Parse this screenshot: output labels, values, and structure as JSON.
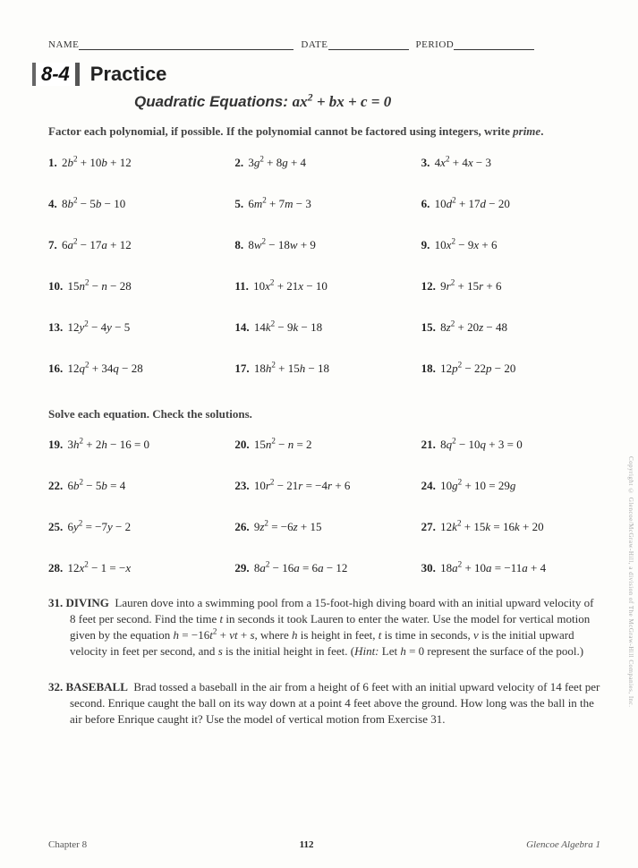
{
  "header": {
    "name_label": "NAME",
    "date_label": "DATE",
    "period_label": "PERIOD"
  },
  "section": {
    "number": "8-4",
    "title": "Practice",
    "subtitle_prefix": "Quadratic Equations: ",
    "subtitle_expr_html": "ax<sup>2</sup> + bx + c = 0"
  },
  "instructions": {
    "a_html": "<b>Factor each polynomial, if possible. If the polynomial cannot be factored using integers, write <i>prime</i>.</b>",
    "b_html": "<b>Solve each equation. Check the solutions.</b>"
  },
  "setA": [
    {
      "n": "1.",
      "html": "2<i>b</i><sup>2</sup> + 10<i>b</i> + 12"
    },
    {
      "n": "2.",
      "html": "3<i>g</i><sup>2</sup> + 8<i>g</i> + 4"
    },
    {
      "n": "3.",
      "html": "4<i>x</i><sup>2</sup> + 4<i>x</i> − 3"
    },
    {
      "n": "4.",
      "html": "8<i>b</i><sup>2</sup> − 5<i>b</i> − 10"
    },
    {
      "n": "5.",
      "html": "6<i>m</i><sup>2</sup> + 7<i>m</i> − 3"
    },
    {
      "n": "6.",
      "html": "10<i>d</i><sup>2</sup> + 17<i>d</i> − 20"
    },
    {
      "n": "7.",
      "html": "6<i>a</i><sup>2</sup> − 17<i>a</i> + 12"
    },
    {
      "n": "8.",
      "html": "8<i>w</i><sup>2</sup> − 18<i>w</i> + 9"
    },
    {
      "n": "9.",
      "html": "10<i>x</i><sup>2</sup> − 9<i>x</i> + 6"
    },
    {
      "n": "10.",
      "html": "15<i>n</i><sup>2</sup> − <i>n</i> − 28"
    },
    {
      "n": "11.",
      "html": "10<i>x</i><sup>2</sup> + 21<i>x</i> − 10"
    },
    {
      "n": "12.",
      "html": "9<i>r</i><sup>2</sup> + 15<i>r</i> + 6"
    },
    {
      "n": "13.",
      "html": "12<i>y</i><sup>2</sup> − 4<i>y</i> − 5"
    },
    {
      "n": "14.",
      "html": "14<i>k</i><sup>2</sup> − 9<i>k</i> − 18"
    },
    {
      "n": "15.",
      "html": "8<i>z</i><sup>2</sup> + 20<i>z</i> − 48"
    },
    {
      "n": "16.",
      "html": "12<i>q</i><sup>2</sup> + 34<i>q</i> − 28"
    },
    {
      "n": "17.",
      "html": "18<i>h</i><sup>2</sup> + 15<i>h</i> − 18"
    },
    {
      "n": "18.",
      "html": "12<i>p</i><sup>2</sup> − 22<i>p</i> − 20"
    }
  ],
  "setB": [
    {
      "n": "19.",
      "html": "3<i>h</i><sup>2</sup> + 2<i>h</i> − 16 = 0"
    },
    {
      "n": "20.",
      "html": "15<i>n</i><sup>2</sup> − <i>n</i> = 2"
    },
    {
      "n": "21.",
      "html": "8<i>q</i><sup>2</sup> − 10<i>q</i> + 3 = 0"
    },
    {
      "n": "22.",
      "html": "6<i>b</i><sup>2</sup> − 5<i>b</i> = 4"
    },
    {
      "n": "23.",
      "html": "10<i>r</i><sup>2</sup> − 21<i>r</i> = −4<i>r</i> + 6"
    },
    {
      "n": "24.",
      "html": "10<i>g</i><sup>2</sup> + 10 = 29<i>g</i>"
    },
    {
      "n": "25.",
      "html": "6<i>y</i><sup>2</sup> = −7<i>y</i> − 2"
    },
    {
      "n": "26.",
      "html": "9<i>z</i><sup>2</sup> = −6<i>z</i> + 15"
    },
    {
      "n": "27.",
      "html": "12<i>k</i><sup>2</sup> + 15<i>k</i> = 16<i>k</i> + 20"
    },
    {
      "n": "28.",
      "html": "12<i>x</i><sup>2</sup> − 1 = −<i>x</i>"
    },
    {
      "n": "29.",
      "html": "8<i>a</i><sup>2</sup> − 16<i>a</i> = 6<i>a</i> − 12"
    },
    {
      "n": "30.",
      "html": "18<i>a</i><sup>2</sup> + 10<i>a</i> = −11<i>a</i> + 4"
    }
  ],
  "word_problems": [
    {
      "n": "31.",
      "topic": "DIVING",
      "html": "Lauren dove into a swimming pool from a 15-foot-high diving board with an initial upward velocity of 8 feet per second. Find the time <i>t</i> in seconds it took Lauren to enter the water. Use the model for vertical motion given by the equation <i>h</i> = −16<i>t</i><sup>2</sup> + <i>vt</i> + <i>s</i>, where <i>h</i> is height in feet, <i>t</i> is time in seconds, <i>v</i> is the initial upward velocity in feet per second, and <i>s</i> is the initial height in feet. (<i>Hint:</i> Let <i>h</i> = 0 represent the surface of the pool.)"
    },
    {
      "n": "32.",
      "topic": "BASEBALL",
      "html": "Brad tossed a baseball in the air from a height of 6 feet with an initial upward velocity of 14 feet per second. Enrique caught the ball on its way down at a point 4 feet above the ground. How long was the ball in the air before Enrique caught it? Use the model of vertical motion from Exercise 31."
    }
  ],
  "footer": {
    "left": "Chapter 8",
    "page": "112",
    "right": "Glencoe Algebra 1"
  },
  "copyright": "Copyright © Glencoe/McGraw-Hill, a division of The McGraw-Hill Companies, Inc."
}
